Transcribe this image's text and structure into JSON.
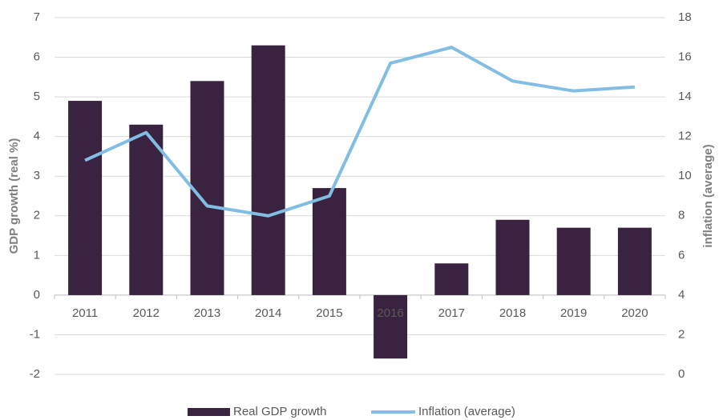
{
  "chart_data": {
    "type": "bar",
    "categories": [
      "2011",
      "2012",
      "2013",
      "2014",
      "2015",
      "2016",
      "2017",
      "2018",
      "2019",
      "2020"
    ],
    "y_label": "GDP growth (real %)",
    "y2_label": "inflation (average)",
    "series": [
      {
        "name": "Real GDP growth",
        "type": "bar",
        "color": "#3a2340",
        "values": [
          4.9,
          4.3,
          5.4,
          6.3,
          2.7,
          -1.6,
          0.8,
          1.9,
          1.7,
          1.7
        ]
      },
      {
        "name": "Inflation (average)",
        "type": "line",
        "axis": "y2",
        "color": "#82bde3",
        "values": [
          10.8,
          12.2,
          8.5,
          8.0,
          9.0,
          15.7,
          16.5,
          14.8,
          14.3,
          14.5
        ]
      }
    ],
    "ylim": [
      -2,
      7
    ],
    "yticks": [
      -2,
      -1,
      0,
      1,
      2,
      3,
      4,
      5,
      6,
      7
    ],
    "y2lim": [
      0,
      18
    ],
    "y2ticks": [
      0,
      2,
      4,
      6,
      8,
      10,
      12,
      14,
      16,
      18
    ],
    "grid": true,
    "legend": "bottom"
  }
}
